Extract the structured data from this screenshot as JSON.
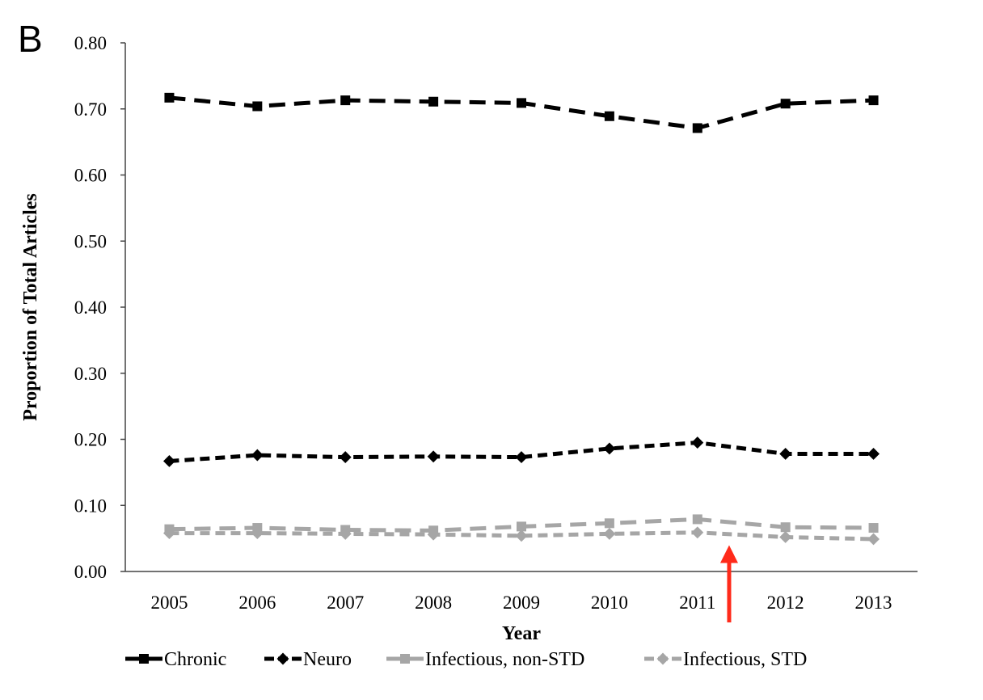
{
  "panel_label": "B",
  "colors": {
    "black": "#000000",
    "gray": "#a6a6a6",
    "arrow": "#ff2a1a",
    "axis": "#444444"
  },
  "chart_data": {
    "type": "line",
    "title": "",
    "xlabel": "Year",
    "ylabel": "Proportion of Total Articles",
    "ylim": [
      0,
      0.8
    ],
    "yticks": [
      "0.00",
      "0.10",
      "0.20",
      "0.30",
      "0.40",
      "0.50",
      "0.60",
      "0.70",
      "0.80"
    ],
    "x": [
      "2005",
      "2006",
      "2007",
      "2008",
      "2009",
      "2010",
      "2011",
      "2012",
      "2013"
    ],
    "grid": false,
    "legend_position": "bottom",
    "series": [
      {
        "name": "Chronic",
        "color": "#000000",
        "marker": "square",
        "values": [
          0.717,
          0.704,
          0.713,
          0.711,
          0.709,
          0.689,
          0.671,
          0.708,
          0.713
        ]
      },
      {
        "name": "Neuro",
        "color": "#000000",
        "marker": "diamond",
        "values": [
          0.167,
          0.176,
          0.173,
          0.174,
          0.173,
          0.186,
          0.195,
          0.178,
          0.178
        ]
      },
      {
        "name": "Infectious, non-STD",
        "color": "#a6a6a6",
        "marker": "square",
        "values": [
          0.064,
          0.066,
          0.063,
          0.062,
          0.068,
          0.073,
          0.079,
          0.067,
          0.066
        ]
      },
      {
        "name": "Infectious, STD",
        "color": "#a6a6a6",
        "marker": "diamond",
        "values": [
          0.058,
          0.058,
          0.057,
          0.056,
          0.054,
          0.057,
          0.059,
          0.052,
          0.049
        ]
      }
    ],
    "annotations": [
      {
        "type": "arrow",
        "color": "#ff2a1a",
        "direction": "up",
        "x_between": [
          "2011",
          "2012"
        ],
        "points_to_y": 0.052
      }
    ]
  }
}
